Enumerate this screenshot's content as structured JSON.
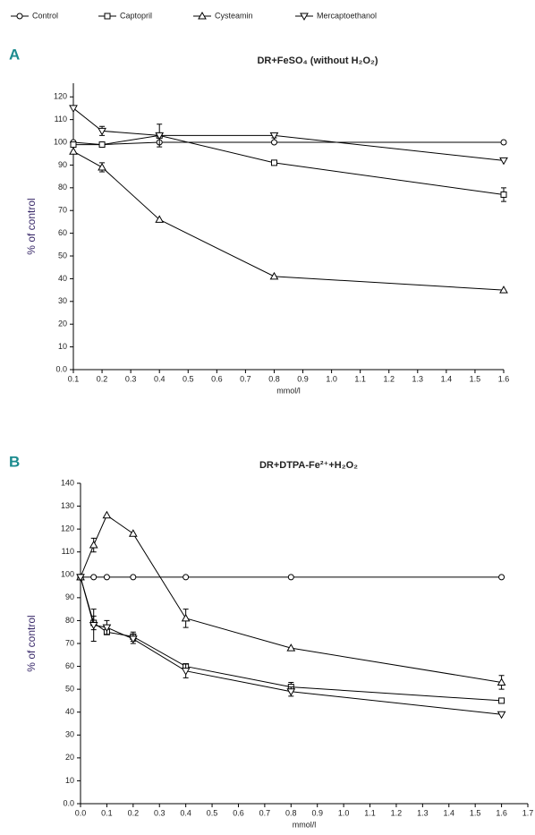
{
  "chart_data": [
    {
      "type": "line",
      "panel": "A",
      "title": "DR+FeSO₄ (without H₂O₂)",
      "xlabel": "mmol/l",
      "ylabel": "% of control",
      "x": [
        0.1,
        0.2,
        0.4,
        0.8,
        1.6
      ],
      "xlim": [
        0.1,
        1.6
      ],
      "xticks": [
        0.1,
        0.2,
        0.3,
        0.4,
        0.5,
        0.6,
        0.7,
        0.8,
        0.9,
        {
          "value": 1,
          "label": "1.0"
        },
        1.1,
        1.2,
        1.3,
        1.4,
        1.5,
        1.6
      ],
      "ylim": [
        0,
        126
      ],
      "yticks": [
        {
          "value": 0,
          "label": "0.0"
        },
        10,
        20,
        30,
        40,
        50,
        60,
        70,
        80,
        90,
        100,
        110,
        120
      ],
      "series": [
        {
          "name": "Control",
          "marker": "circle",
          "color": "#000000",
          "values": [
            100,
            99,
            100,
            100,
            100
          ],
          "errors": [
            null,
            null,
            null,
            null,
            null
          ]
        },
        {
          "name": "Captopril",
          "marker": "square",
          "color": "#000000",
          "values": [
            99,
            99,
            103,
            91,
            77
          ],
          "errors": [
            null,
            null,
            5,
            1,
            3
          ]
        },
        {
          "name": "Cysteamin",
          "marker": "triangle-up",
          "color": "#000000",
          "values": [
            96,
            89,
            66,
            41,
            35
          ],
          "errors": [
            null,
            2,
            null,
            null,
            null
          ]
        },
        {
          "name": "Mercaptoethanol",
          "marker": "triangle-down",
          "color": "#000000",
          "values": [
            115,
            105,
            103,
            103,
            92
          ],
          "errors": [
            null,
            2,
            null,
            1,
            null
          ]
        }
      ]
    },
    {
      "type": "line",
      "panel": "B",
      "title": "DR+DTPA-Fe²⁺+H₂O₂",
      "xlabel": "mmol/l",
      "ylabel": "% of control",
      "x": [
        0,
        0.05,
        0.1,
        0.2,
        0.4,
        0.8,
        1.6
      ],
      "xlim": [
        0,
        1.7
      ],
      "xticks": [
        {
          "value": 0,
          "label": "0.0"
        },
        0.1,
        0.2,
        0.3,
        0.4,
        0.5,
        0.6,
        0.7,
        0.8,
        0.9,
        {
          "value": 1,
          "label": "1.0"
        },
        1.1,
        1.2,
        1.3,
        1.4,
        1.5,
        1.6,
        1.7
      ],
      "ylim": [
        0,
        140
      ],
      "yticks": [
        {
          "value": 0,
          "label": "0.0"
        },
        10,
        20,
        30,
        40,
        50,
        60,
        70,
        80,
        90,
        100,
        110,
        120,
        130,
        140
      ],
      "series": [
        {
          "marker": "circle",
          "color": "#000000",
          "values": [
            99,
            99,
            99,
            99,
            99,
            99,
            99
          ],
          "errors": [
            null,
            null,
            null,
            null,
            null,
            null,
            null
          ]
        },
        {
          "marker": "square",
          "color": "#000000",
          "values": [
            99,
            79,
            75,
            73,
            60,
            51,
            45
          ],
          "errors": [
            null,
            3,
            1,
            2,
            1,
            2,
            null
          ]
        },
        {
          "marker": "triangle-up",
          "color": "#000000",
          "values": [
            99,
            113,
            126,
            118,
            81,
            68,
            53
          ],
          "errors": [
            null,
            3,
            null,
            null,
            4,
            null,
            3
          ]
        },
        {
          "marker": "triangle-down",
          "color": "#000000",
          "values": [
            99,
            78,
            77,
            72,
            58,
            49,
            39
          ],
          "errors": [
            null,
            7,
            3,
            2,
            3,
            2,
            null
          ]
        }
      ]
    }
  ]
}
